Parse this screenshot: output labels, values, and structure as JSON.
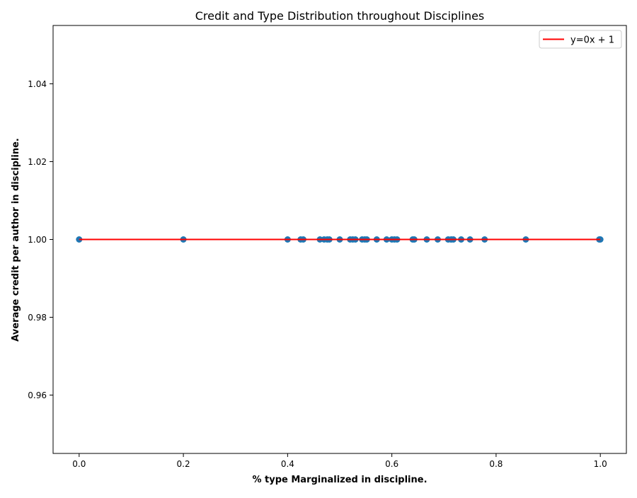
{
  "chart_data": {
    "type": "scatter",
    "title": "Credit and Type Distribution throughout Disciplines",
    "xlabel": "% type Marginalized in discipline.",
    "ylabel": "Average credit per author in discipline.",
    "xlim": [
      -0.05,
      1.05
    ],
    "ylim": [
      0.945,
      1.055
    ],
    "xticks": [
      0.0,
      0.2,
      0.4,
      0.6,
      0.8,
      1.0
    ],
    "xtick_labels": [
      "0.0",
      "0.2",
      "0.4",
      "0.6",
      "0.8",
      "1.0"
    ],
    "yticks": [
      0.96,
      0.98,
      1.0,
      1.02,
      1.04
    ],
    "ytick_labels": [
      "0.96",
      "0.98",
      "1.00",
      "1.02",
      "1.04"
    ],
    "grid": false,
    "legend_position": "top-right",
    "series": [
      {
        "kind": "scatter",
        "color": "#1f77b4",
        "points": [
          {
            "x": 0.0,
            "y": 1.0
          },
          {
            "x": 0.2,
            "y": 1.0
          },
          {
            "x": 0.4,
            "y": 1.0
          },
          {
            "x": 0.425,
            "y": 1.0
          },
          {
            "x": 0.43,
            "y": 1.0
          },
          {
            "x": 0.462,
            "y": 1.0
          },
          {
            "x": 0.47,
            "y": 1.0
          },
          {
            "x": 0.476,
            "y": 1.0
          },
          {
            "x": 0.48,
            "y": 1.0
          },
          {
            "x": 0.5,
            "y": 1.0
          },
          {
            "x": 0.52,
            "y": 1.0
          },
          {
            "x": 0.525,
            "y": 1.0
          },
          {
            "x": 0.53,
            "y": 1.0
          },
          {
            "x": 0.543,
            "y": 1.0
          },
          {
            "x": 0.548,
            "y": 1.0
          },
          {
            "x": 0.552,
            "y": 1.0
          },
          {
            "x": 0.571,
            "y": 1.0
          },
          {
            "x": 0.59,
            "y": 1.0
          },
          {
            "x": 0.6,
            "y": 1.0
          },
          {
            "x": 0.605,
            "y": 1.0
          },
          {
            "x": 0.61,
            "y": 1.0
          },
          {
            "x": 0.64,
            "y": 1.0
          },
          {
            "x": 0.643,
            "y": 1.0
          },
          {
            "x": 0.667,
            "y": 1.0
          },
          {
            "x": 0.688,
            "y": 1.0
          },
          {
            "x": 0.708,
            "y": 1.0
          },
          {
            "x": 0.714,
            "y": 1.0
          },
          {
            "x": 0.718,
            "y": 1.0
          },
          {
            "x": 0.733,
            "y": 1.0
          },
          {
            "x": 0.75,
            "y": 1.0
          },
          {
            "x": 0.778,
            "y": 1.0
          },
          {
            "x": 0.857,
            "y": 1.0
          },
          {
            "x": 0.998,
            "y": 1.0
          },
          {
            "x": 1.0,
            "y": 1.0
          }
        ]
      },
      {
        "kind": "line",
        "name": "y=0x + 1",
        "color": "#ff0000",
        "x": [
          0.0,
          1.0
        ],
        "y": [
          1.0,
          1.0
        ]
      }
    ]
  }
}
